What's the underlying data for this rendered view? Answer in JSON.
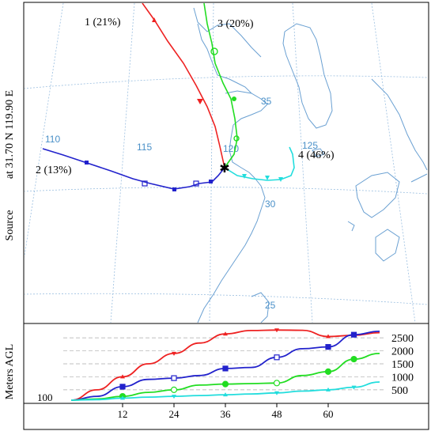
{
  "figure": {
    "source_label": "Source",
    "source_coords": "at  31.70 N  119.90 E",
    "height_axis_label": "Meters AGL",
    "baseline_label": "100"
  },
  "map": {
    "lon_labels": [
      "110",
      "115",
      "120",
      "125"
    ],
    "lat_labels": [
      "35",
      "30",
      "25"
    ]
  },
  "colors": {
    "coast": "#6aa0d2",
    "grid": "#9bbfe0",
    "traj1": "#ee2222",
    "traj2": "#2222cc",
    "traj3": "#22dd22",
    "traj4": "#22dddd"
  },
  "trajectories": [
    {
      "id": "1",
      "label": "1 (21%)"
    },
    {
      "id": "2",
      "label": "2 (13%)"
    },
    {
      "id": "3",
      "label": "3 (20%)"
    },
    {
      "id": "4",
      "label": "4 (46%)"
    }
  ],
  "chart_data": {
    "type": "line",
    "x": [
      0,
      6,
      12,
      18,
      24,
      30,
      36,
      42,
      48,
      54,
      60,
      66,
      72
    ],
    "x_ticks": [
      "12",
      "24",
      "36",
      "48",
      "60"
    ],
    "x_tick_values": [
      12,
      24,
      36,
      48,
      60
    ],
    "y_ticks": [
      "500",
      "1000",
      "1500",
      "2000",
      "2500"
    ],
    "y_tick_values": [
      500,
      1000,
      1500,
      2000,
      2500
    ],
    "ylim": [
      100,
      2900
    ],
    "xlim": [
      0,
      72
    ],
    "series": [
      {
        "name": "1",
        "color": "#ee2222",
        "values": [
          100,
          500,
          1000,
          1500,
          1900,
          2300,
          2650,
          2780,
          2800,
          2790,
          2550,
          2600,
          2700
        ]
      },
      {
        "name": "2",
        "color": "#2222cc",
        "values": [
          100,
          250,
          620,
          900,
          950,
          1050,
          1320,
          1360,
          1750,
          2080,
          2150,
          2620,
          2750
        ]
      },
      {
        "name": "3",
        "color": "#22dd22",
        "values": [
          100,
          150,
          250,
          400,
          500,
          680,
          720,
          740,
          760,
          1050,
          1200,
          1680,
          1900
        ]
      },
      {
        "name": "4",
        "color": "#22dddd",
        "values": [
          100,
          120,
          180,
          220,
          250,
          280,
          310,
          340,
          380,
          450,
          500,
          600,
          800
        ]
      }
    ]
  }
}
